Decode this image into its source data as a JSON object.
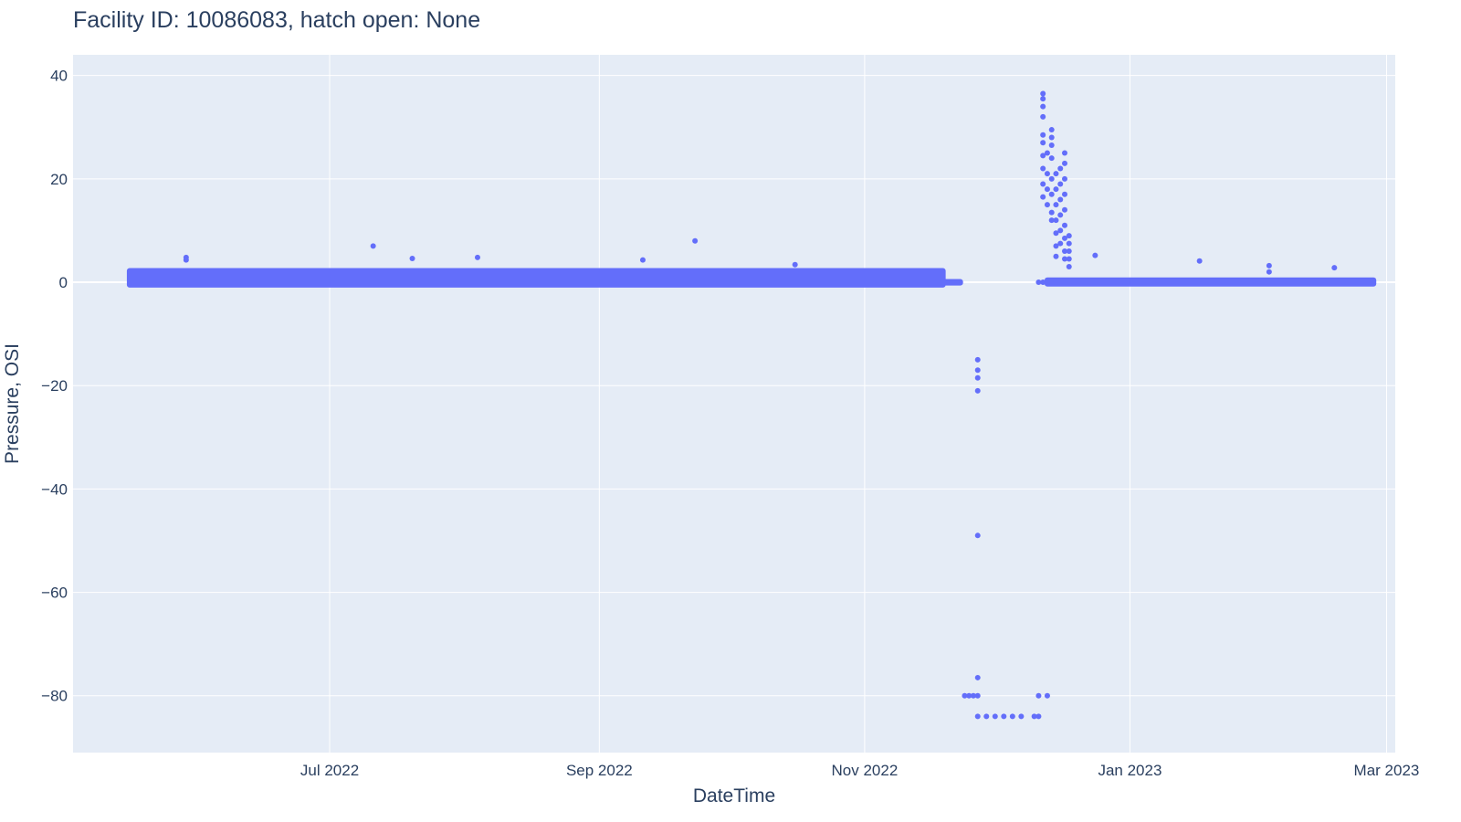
{
  "chart_data": {
    "type": "scatter",
    "title": "Facility ID: 10086083, hatch open: None",
    "xlabel": "DateTime",
    "ylabel": "Pressure, OSI",
    "xlim": [
      "2022-05-03",
      "2023-03-03"
    ],
    "ylim": [
      -91,
      44
    ],
    "x_ticks": [
      "2022-07-01",
      "2022-09-01",
      "2022-11-01",
      "2023-01-01",
      "2023-03-01"
    ],
    "x_tick_labels": [
      "Jul 2022",
      "Sep 2022",
      "Nov 2022",
      "Jan 2023",
      "Mar 2023"
    ],
    "y_ticks": [
      40,
      20,
      0,
      -20,
      -40,
      -60,
      -80
    ],
    "y_tick_labels": [
      "40",
      "20",
      "0",
      "−20",
      "−40",
      "−60",
      "−80"
    ],
    "grid": true,
    "colors": {
      "marker": "#636efa",
      "plot_bg": "#e5ecf6",
      "grid": "#ffffff"
    },
    "series": [
      {
        "bands": [
          {
            "x_start": "2022-05-16",
            "x_end": "2022-11-19",
            "y_min": -0.5,
            "y_max": 2.2
          },
          {
            "x_start": "2022-11-19",
            "x_end": "2022-11-23",
            "y_min": -0.1,
            "y_max": 0.1
          },
          {
            "x_start": "2022-12-13",
            "x_end": "2023-02-26",
            "y_min": -0.3,
            "y_max": 0.4
          }
        ],
        "points": [
          {
            "x": "2022-05-29",
            "y": 4.8
          },
          {
            "x": "2022-05-29",
            "y": 4.3
          },
          {
            "x": "2022-07-11",
            "y": 7.0
          },
          {
            "x": "2022-07-20",
            "y": 4.6
          },
          {
            "x": "2022-08-04",
            "y": 4.8
          },
          {
            "x": "2022-09-11",
            "y": 4.3
          },
          {
            "x": "2022-09-23",
            "y": 8.0
          },
          {
            "x": "2022-10-16",
            "y": 3.4
          },
          {
            "x": "2022-11-24",
            "y": -80
          },
          {
            "x": "2022-11-25",
            "y": -80
          },
          {
            "x": "2022-11-26",
            "y": -80
          },
          {
            "x": "2022-11-27",
            "y": -80
          },
          {
            "x": "2022-11-27",
            "y": -76.5
          },
          {
            "x": "2022-11-27",
            "y": -49
          },
          {
            "x": "2022-11-27",
            "y": -15
          },
          {
            "x": "2022-11-27",
            "y": -17
          },
          {
            "x": "2022-11-27",
            "y": -18.5
          },
          {
            "x": "2022-11-27",
            "y": -21
          },
          {
            "x": "2022-11-27",
            "y": -84
          },
          {
            "x": "2022-11-29",
            "y": -84
          },
          {
            "x": "2022-12-01",
            "y": -84
          },
          {
            "x": "2022-12-03",
            "y": -84
          },
          {
            "x": "2022-12-05",
            "y": -84
          },
          {
            "x": "2022-12-07",
            "y": -84
          },
          {
            "x": "2022-12-10",
            "y": -84
          },
          {
            "x": "2022-12-11",
            "y": -84
          },
          {
            "x": "2022-12-11",
            "y": -80
          },
          {
            "x": "2022-12-13",
            "y": -80
          },
          {
            "x": "2022-12-11",
            "y": 0
          },
          {
            "x": "2022-12-12",
            "y": 0
          },
          {
            "x": "2022-12-15",
            "y": 0
          },
          {
            "x": "2022-12-12",
            "y": 36.5
          },
          {
            "x": "2022-12-12",
            "y": 35.5
          },
          {
            "x": "2022-12-12",
            "y": 34.0
          },
          {
            "x": "2022-12-12",
            "y": 32.0
          },
          {
            "x": "2022-12-12",
            "y": 28.5
          },
          {
            "x": "2022-12-12",
            "y": 27.0
          },
          {
            "x": "2022-12-12",
            "y": 24.5
          },
          {
            "x": "2022-12-12",
            "y": 22.0
          },
          {
            "x": "2022-12-12",
            "y": 19.0
          },
          {
            "x": "2022-12-12",
            "y": 16.5
          },
          {
            "x": "2022-12-13",
            "y": 25.0
          },
          {
            "x": "2022-12-13",
            "y": 21.0
          },
          {
            "x": "2022-12-13",
            "y": 18.0
          },
          {
            "x": "2022-12-13",
            "y": 15.0
          },
          {
            "x": "2022-12-14",
            "y": 29.5
          },
          {
            "x": "2022-12-14",
            "y": 28.0
          },
          {
            "x": "2022-12-14",
            "y": 26.5
          },
          {
            "x": "2022-12-14",
            "y": 24.0
          },
          {
            "x": "2022-12-14",
            "y": 20.0
          },
          {
            "x": "2022-12-14",
            "y": 17.0
          },
          {
            "x": "2022-12-14",
            "y": 13.5
          },
          {
            "x": "2022-12-14",
            "y": 12.0
          },
          {
            "x": "2022-12-15",
            "y": 21.0
          },
          {
            "x": "2022-12-15",
            "y": 18.0
          },
          {
            "x": "2022-12-15",
            "y": 15.0
          },
          {
            "x": "2022-12-15",
            "y": 12.0
          },
          {
            "x": "2022-12-15",
            "y": 9.5
          },
          {
            "x": "2022-12-15",
            "y": 7.0
          },
          {
            "x": "2022-12-15",
            "y": 5.0
          },
          {
            "x": "2022-12-16",
            "y": 22.0
          },
          {
            "x": "2022-12-16",
            "y": 19.0
          },
          {
            "x": "2022-12-16",
            "y": 16.0
          },
          {
            "x": "2022-12-16",
            "y": 13.0
          },
          {
            "x": "2022-12-16",
            "y": 10.0
          },
          {
            "x": "2022-12-16",
            "y": 7.5
          },
          {
            "x": "2022-12-17",
            "y": 25.0
          },
          {
            "x": "2022-12-17",
            "y": 23.0
          },
          {
            "x": "2022-12-17",
            "y": 20.0
          },
          {
            "x": "2022-12-17",
            "y": 17.0
          },
          {
            "x": "2022-12-17",
            "y": 14.0
          },
          {
            "x": "2022-12-17",
            "y": 11.0
          },
          {
            "x": "2022-12-17",
            "y": 8.5
          },
          {
            "x": "2022-12-17",
            "y": 6.0
          },
          {
            "x": "2022-12-17",
            "y": 4.5
          },
          {
            "x": "2022-12-18",
            "y": 9.0
          },
          {
            "x": "2022-12-18",
            "y": 7.5
          },
          {
            "x": "2022-12-18",
            "y": 6.0
          },
          {
            "x": "2022-12-18",
            "y": 4.5
          },
          {
            "x": "2022-12-18",
            "y": 3.0
          },
          {
            "x": "2022-12-24",
            "y": 5.2
          },
          {
            "x": "2023-01-17",
            "y": 4.1
          },
          {
            "x": "2023-02-02",
            "y": 3.2
          },
          {
            "x": "2023-02-02",
            "y": 2.0
          },
          {
            "x": "2023-02-17",
            "y": 2.8
          }
        ]
      }
    ]
  }
}
